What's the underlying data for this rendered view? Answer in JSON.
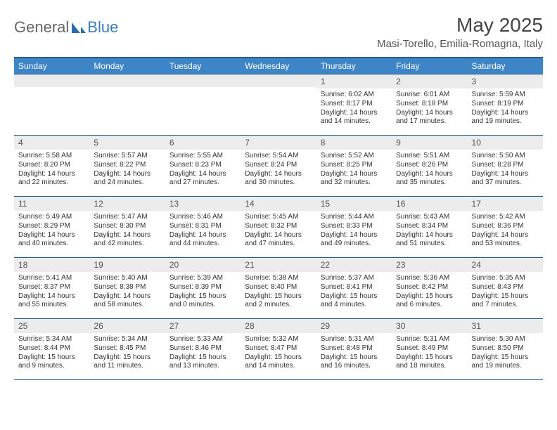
{
  "brand": {
    "word1": "General",
    "word2": "Blue"
  },
  "title": "May 2025",
  "subtitle": "Masi-Torello, Emilia-Romagna, Italy",
  "colors": {
    "header_bg": "#3d85c6",
    "border": "#2b5d8c",
    "daynum_bg": "#ececec",
    "text": "#333333",
    "logo_gray": "#666666",
    "logo_blue": "#3a7dbf"
  },
  "weekdays": [
    "Sunday",
    "Monday",
    "Tuesday",
    "Wednesday",
    "Thursday",
    "Friday",
    "Saturday"
  ],
  "weeks": [
    [
      {
        "n": "",
        "sunrise": "",
        "sunset": "",
        "daylight": ""
      },
      {
        "n": "",
        "sunrise": "",
        "sunset": "",
        "daylight": ""
      },
      {
        "n": "",
        "sunrise": "",
        "sunset": "",
        "daylight": ""
      },
      {
        "n": "",
        "sunrise": "",
        "sunset": "",
        "daylight": ""
      },
      {
        "n": "1",
        "sunrise": "Sunrise: 6:02 AM",
        "sunset": "Sunset: 8:17 PM",
        "daylight": "Daylight: 14 hours and 14 minutes."
      },
      {
        "n": "2",
        "sunrise": "Sunrise: 6:01 AM",
        "sunset": "Sunset: 8:18 PM",
        "daylight": "Daylight: 14 hours and 17 minutes."
      },
      {
        "n": "3",
        "sunrise": "Sunrise: 5:59 AM",
        "sunset": "Sunset: 8:19 PM",
        "daylight": "Daylight: 14 hours and 19 minutes."
      }
    ],
    [
      {
        "n": "4",
        "sunrise": "Sunrise: 5:58 AM",
        "sunset": "Sunset: 8:20 PM",
        "daylight": "Daylight: 14 hours and 22 minutes."
      },
      {
        "n": "5",
        "sunrise": "Sunrise: 5:57 AM",
        "sunset": "Sunset: 8:22 PM",
        "daylight": "Daylight: 14 hours and 24 minutes."
      },
      {
        "n": "6",
        "sunrise": "Sunrise: 5:55 AM",
        "sunset": "Sunset: 8:23 PM",
        "daylight": "Daylight: 14 hours and 27 minutes."
      },
      {
        "n": "7",
        "sunrise": "Sunrise: 5:54 AM",
        "sunset": "Sunset: 8:24 PM",
        "daylight": "Daylight: 14 hours and 30 minutes."
      },
      {
        "n": "8",
        "sunrise": "Sunrise: 5:52 AM",
        "sunset": "Sunset: 8:25 PM",
        "daylight": "Daylight: 14 hours and 32 minutes."
      },
      {
        "n": "9",
        "sunrise": "Sunrise: 5:51 AM",
        "sunset": "Sunset: 8:26 PM",
        "daylight": "Daylight: 14 hours and 35 minutes."
      },
      {
        "n": "10",
        "sunrise": "Sunrise: 5:50 AM",
        "sunset": "Sunset: 8:28 PM",
        "daylight": "Daylight: 14 hours and 37 minutes."
      }
    ],
    [
      {
        "n": "11",
        "sunrise": "Sunrise: 5:49 AM",
        "sunset": "Sunset: 8:29 PM",
        "daylight": "Daylight: 14 hours and 40 minutes."
      },
      {
        "n": "12",
        "sunrise": "Sunrise: 5:47 AM",
        "sunset": "Sunset: 8:30 PM",
        "daylight": "Daylight: 14 hours and 42 minutes."
      },
      {
        "n": "13",
        "sunrise": "Sunrise: 5:46 AM",
        "sunset": "Sunset: 8:31 PM",
        "daylight": "Daylight: 14 hours and 44 minutes."
      },
      {
        "n": "14",
        "sunrise": "Sunrise: 5:45 AM",
        "sunset": "Sunset: 8:32 PM",
        "daylight": "Daylight: 14 hours and 47 minutes."
      },
      {
        "n": "15",
        "sunrise": "Sunrise: 5:44 AM",
        "sunset": "Sunset: 8:33 PM",
        "daylight": "Daylight: 14 hours and 49 minutes."
      },
      {
        "n": "16",
        "sunrise": "Sunrise: 5:43 AM",
        "sunset": "Sunset: 8:34 PM",
        "daylight": "Daylight: 14 hours and 51 minutes."
      },
      {
        "n": "17",
        "sunrise": "Sunrise: 5:42 AM",
        "sunset": "Sunset: 8:36 PM",
        "daylight": "Daylight: 14 hours and 53 minutes."
      }
    ],
    [
      {
        "n": "18",
        "sunrise": "Sunrise: 5:41 AM",
        "sunset": "Sunset: 8:37 PM",
        "daylight": "Daylight: 14 hours and 55 minutes."
      },
      {
        "n": "19",
        "sunrise": "Sunrise: 5:40 AM",
        "sunset": "Sunset: 8:38 PM",
        "daylight": "Daylight: 14 hours and 58 minutes."
      },
      {
        "n": "20",
        "sunrise": "Sunrise: 5:39 AM",
        "sunset": "Sunset: 8:39 PM",
        "daylight": "Daylight: 15 hours and 0 minutes."
      },
      {
        "n": "21",
        "sunrise": "Sunrise: 5:38 AM",
        "sunset": "Sunset: 8:40 PM",
        "daylight": "Daylight: 15 hours and 2 minutes."
      },
      {
        "n": "22",
        "sunrise": "Sunrise: 5:37 AM",
        "sunset": "Sunset: 8:41 PM",
        "daylight": "Daylight: 15 hours and 4 minutes."
      },
      {
        "n": "23",
        "sunrise": "Sunrise: 5:36 AM",
        "sunset": "Sunset: 8:42 PM",
        "daylight": "Daylight: 15 hours and 6 minutes."
      },
      {
        "n": "24",
        "sunrise": "Sunrise: 5:35 AM",
        "sunset": "Sunset: 8:43 PM",
        "daylight": "Daylight: 15 hours and 7 minutes."
      }
    ],
    [
      {
        "n": "25",
        "sunrise": "Sunrise: 5:34 AM",
        "sunset": "Sunset: 8:44 PM",
        "daylight": "Daylight: 15 hours and 9 minutes."
      },
      {
        "n": "26",
        "sunrise": "Sunrise: 5:34 AM",
        "sunset": "Sunset: 8:45 PM",
        "daylight": "Daylight: 15 hours and 11 minutes."
      },
      {
        "n": "27",
        "sunrise": "Sunrise: 5:33 AM",
        "sunset": "Sunset: 8:46 PM",
        "daylight": "Daylight: 15 hours and 13 minutes."
      },
      {
        "n": "28",
        "sunrise": "Sunrise: 5:32 AM",
        "sunset": "Sunset: 8:47 PM",
        "daylight": "Daylight: 15 hours and 14 minutes."
      },
      {
        "n": "29",
        "sunrise": "Sunrise: 5:31 AM",
        "sunset": "Sunset: 8:48 PM",
        "daylight": "Daylight: 15 hours and 16 minutes."
      },
      {
        "n": "30",
        "sunrise": "Sunrise: 5:31 AM",
        "sunset": "Sunset: 8:49 PM",
        "daylight": "Daylight: 15 hours and 18 minutes."
      },
      {
        "n": "31",
        "sunrise": "Sunrise: 5:30 AM",
        "sunset": "Sunset: 8:50 PM",
        "daylight": "Daylight: 15 hours and 19 minutes."
      }
    ]
  ]
}
